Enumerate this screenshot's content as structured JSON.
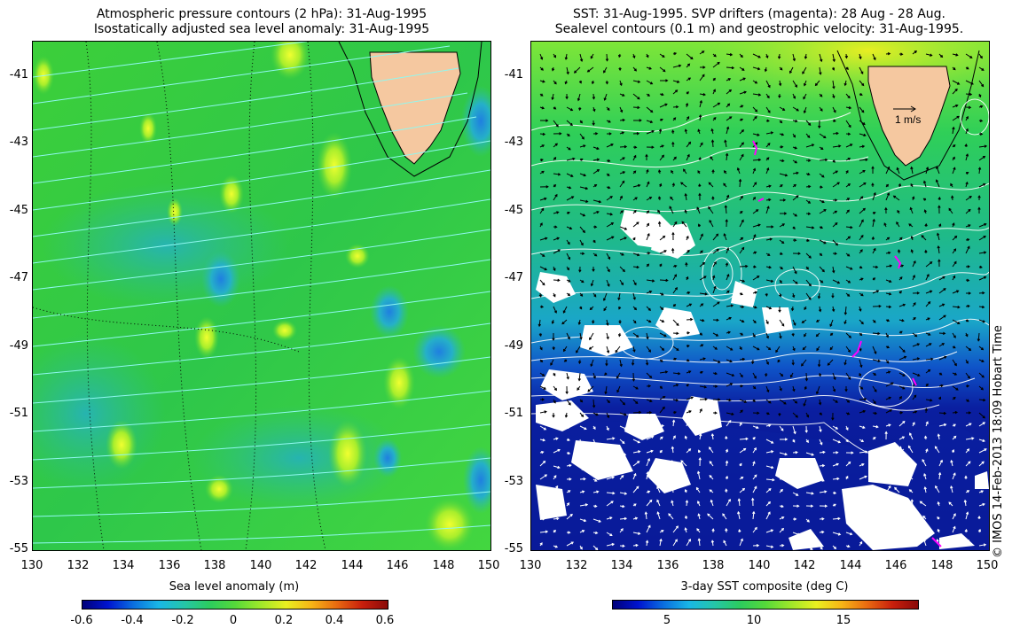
{
  "left_panel": {
    "title_line1": "Atmospheric pressure contours (2 hPa): 31-Aug-1995",
    "title_line2": "Isostatically adjusted sea level anomaly: 31-Aug-1995",
    "y_ticks": [
      "-41",
      "-43",
      "-45",
      "-47",
      "-49",
      "-51",
      "-53",
      "-55"
    ],
    "x_ticks": [
      "130",
      "132",
      "134",
      "136",
      "138",
      "140",
      "142",
      "144",
      "146",
      "148",
      "150"
    ],
    "colorbar": {
      "title": "Sea level anomaly (m)",
      "ticks": [
        "-0.6",
        "-0.4",
        "-0.2",
        "0",
        "0.2",
        "0.4",
        "0.6"
      ]
    }
  },
  "right_panel": {
    "title_line1": "SST: 31-Aug-1995. SVP drifters (magenta): 28 Aug - 28 Aug.",
    "title_line2": "Sealevel contours (0.1 m) and geostrophic velocity: 31-Aug-1995.",
    "y_ticks": [
      "-41",
      "-43",
      "-45",
      "-47",
      "-49",
      "-51",
      "-53",
      "-55"
    ],
    "x_ticks": [
      "130",
      "132",
      "134",
      "136",
      "138",
      "140",
      "142",
      "144",
      "146",
      "148",
      "150"
    ],
    "velocity_scale_label": "1 m/s",
    "colorbar": {
      "title": "3-day SST composite (deg C)",
      "ticks": [
        "5",
        "10",
        "15"
      ]
    }
  },
  "credit": "© IMOS 14-Feb-2013 18:09 Hobart Time",
  "colors": {
    "land": "#f5c8a0",
    "sla_background": "#2ecc40",
    "sst_warm": "#1fc86b",
    "sst_cold": "#0a1fa0",
    "pressure_contour": "#7fffff",
    "sealevel_contour": "#ffffff",
    "drifter": "#ff00ff"
  }
}
